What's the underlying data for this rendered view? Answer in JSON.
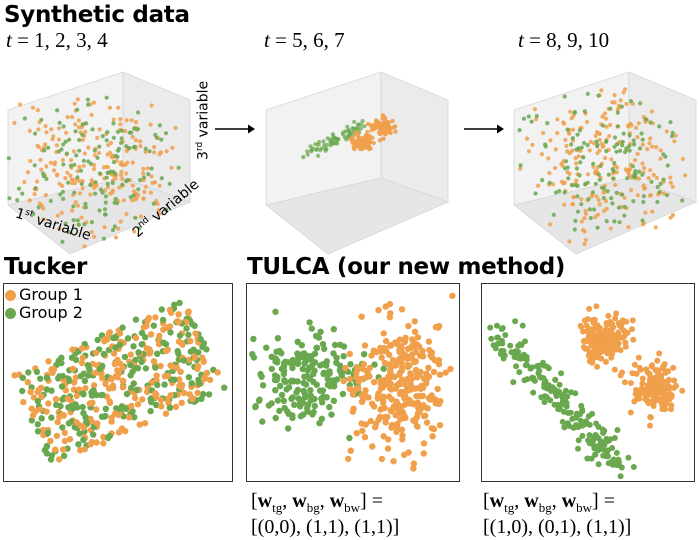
{
  "headings": {
    "synthetic": "Synthetic data",
    "tucker": "Tucker",
    "tulca": "TULCA (our new method)"
  },
  "time_labels": {
    "panel1": "t = 1, 2, 3, 4",
    "panel2": "t = 5, 6, 7",
    "panel3": "t = 8, 9, 10"
  },
  "axis_labels": {
    "first": "1st variable",
    "second": "2nd variable",
    "third": "3rd variable"
  },
  "legend": [
    {
      "name": "Group 1",
      "color": "#f0a04b"
    },
    {
      "name": "Group 2",
      "color": "#6aa84f"
    }
  ],
  "formulas": {
    "left_line1": "[wtg, wbg, wbw] =",
    "left_line2": "[(0,0), (1,1), (1,1)]",
    "right_line1": "[wtg, wbg, wbw] =",
    "right_line2": "[(1,0), (0,1), (1,1)]"
  },
  "colors": {
    "group1": "#f0a04b",
    "group2": "#6aa84f",
    "pane": "#f2f2f2",
    "arrow": "#000000"
  },
  "chart_data": [
    {
      "type": "scatter",
      "name": "3d-t1-4",
      "title": "t = 1, 2, 3, 4",
      "series": [
        {
          "name": "Group 1",
          "distribution": "uniform-cube",
          "n": 220
        },
        {
          "name": "Group 2",
          "distribution": "uniform-cube",
          "n": 140
        }
      ]
    },
    {
      "type": "scatter",
      "name": "3d-t5-7",
      "title": "t = 5, 6, 7",
      "series": [
        {
          "name": "Group 1",
          "distribution": "two-clusters",
          "n": 150
        },
        {
          "name": "Group 2",
          "distribution": "elongated-line",
          "n": 70
        }
      ]
    },
    {
      "type": "scatter",
      "name": "3d-t8-10",
      "title": "t = 8, 9, 10",
      "series": [
        {
          "name": "Group 1",
          "distribution": "uniform-cube",
          "n": 220
        },
        {
          "name": "Group 2",
          "distribution": "uniform-cube",
          "n": 140
        }
      ]
    },
    {
      "type": "scatter",
      "name": "tucker",
      "title": "Tucker",
      "series": [
        {
          "name": "Group 1",
          "distribution": "mixed-rotated-rect",
          "n": 260
        },
        {
          "name": "Group 2",
          "distribution": "mixed-rotated-rect",
          "n": 240
        }
      ]
    },
    {
      "type": "scatter",
      "name": "tulca-a",
      "title": "TULCA (our new method)",
      "series": [
        {
          "name": "Group 1",
          "distribution": "blob-right",
          "n": 300
        },
        {
          "name": "Group 2",
          "distribution": "blob-left",
          "n": 200
        }
      ]
    },
    {
      "type": "scatter",
      "name": "tulca-b",
      "title": "TULCA (our new method)",
      "series": [
        {
          "name": "Group 1",
          "distribution": "two-blobs",
          "n": 300
        },
        {
          "name": "Group 2",
          "distribution": "diagonal-band",
          "n": 200
        }
      ]
    }
  ]
}
